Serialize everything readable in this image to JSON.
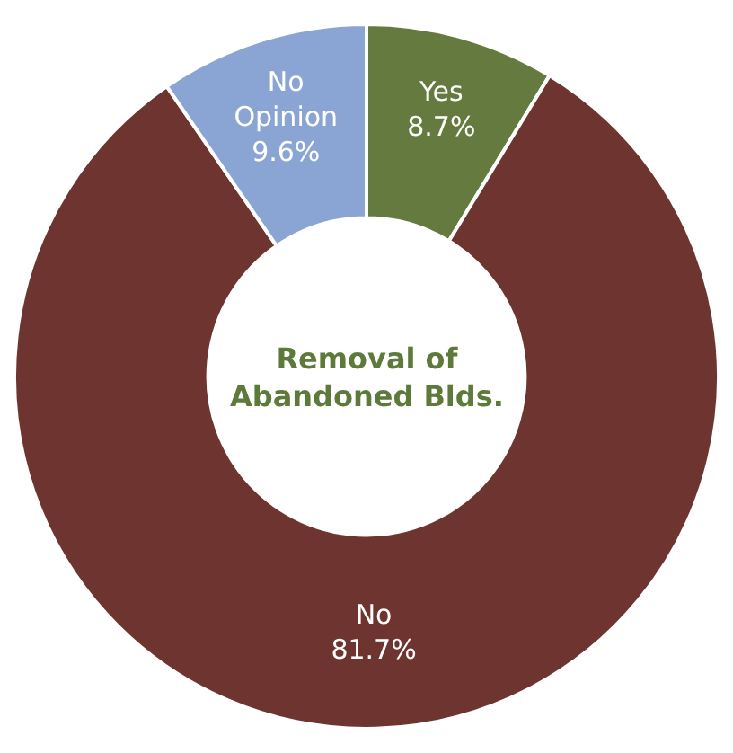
{
  "chart_data": {
    "type": "donut",
    "title": "Removal of Abandoned Blds.",
    "categories": [
      "Yes",
      "No",
      "No Opinion"
    ],
    "values": [
      8.7,
      81.7,
      9.6
    ],
    "colors": [
      "#647a3e",
      "#6e3530",
      "#8aa5d3"
    ],
    "value_labels": [
      "8.7%",
      "81.7%",
      "9.6%"
    ],
    "legend": false
  }
}
